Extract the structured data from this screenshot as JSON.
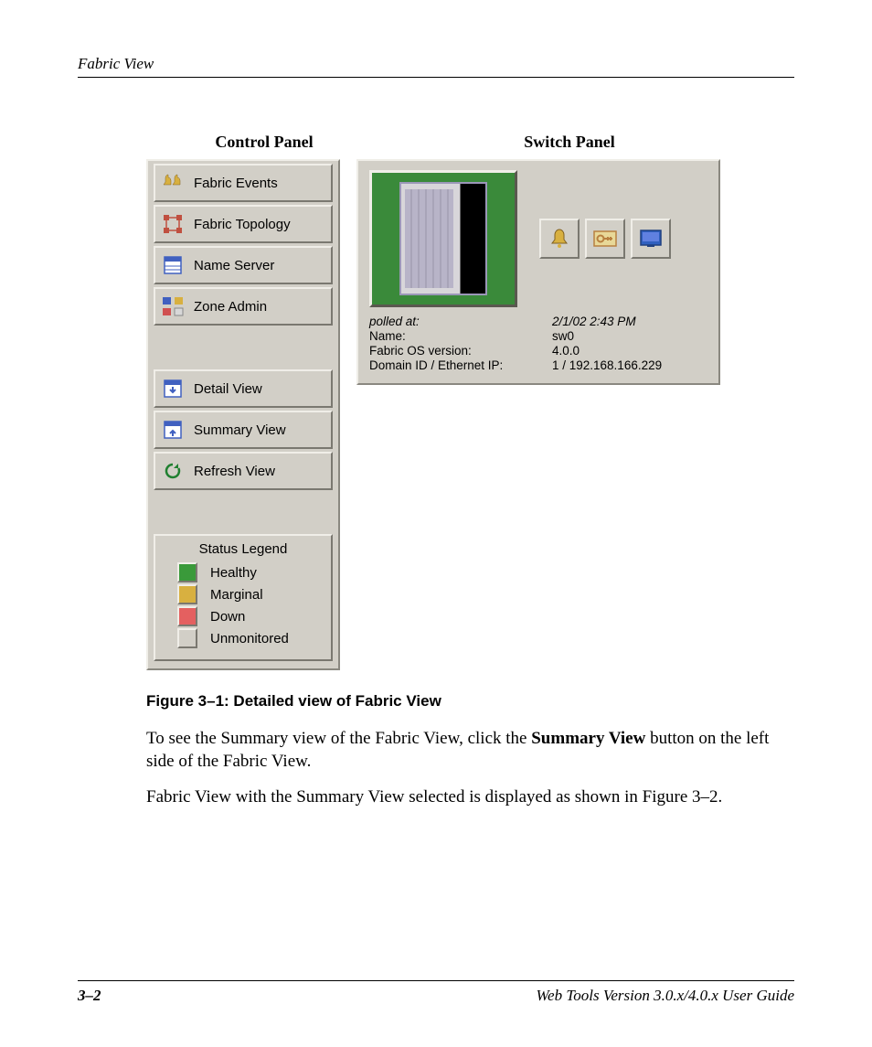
{
  "header": {
    "section": "Fabric View"
  },
  "labels": {
    "control": "Control Panel",
    "switch": "Switch Panel"
  },
  "control_panel": {
    "buttons_top": [
      {
        "label": "Fabric Events",
        "name": "fabric-events-button",
        "icon": "bells",
        "icon_color": "#d8b040"
      },
      {
        "label": "Fabric Topology",
        "name": "fabric-topology-button",
        "icon": "topology",
        "icon_color": "#c05040"
      },
      {
        "label": "Name Server",
        "name": "name-server-button",
        "icon": "table",
        "icon_color": "#4060c0"
      },
      {
        "label": "Zone Admin",
        "name": "zone-admin-button",
        "icon": "zone",
        "icon_color": "#4060c0"
      }
    ],
    "buttons_mid": [
      {
        "label": "Detail View",
        "name": "detail-view-button",
        "icon": "arrow-down",
        "icon_color": "#4060c0"
      },
      {
        "label": "Summary View",
        "name": "summary-view-button",
        "icon": "arrow-up",
        "icon_color": "#4060c0"
      },
      {
        "label": "Refresh View",
        "name": "refresh-view-button",
        "icon": "refresh",
        "icon_color": "#208030"
      }
    ],
    "legend": {
      "title": "Status Legend",
      "items": [
        {
          "label": "Healthy",
          "color": "#3a9a3a"
        },
        {
          "label": "Marginal",
          "color": "#d8b040"
        },
        {
          "label": "Down",
          "color": "#e46060"
        },
        {
          "label": "Unmonitored",
          "color": "#d2cfc7"
        }
      ]
    }
  },
  "switch_panel": {
    "icons": [
      {
        "name": "alert-icon",
        "glyph": "bell",
        "color": "#d8b040"
      },
      {
        "name": "admin-icon",
        "glyph": "key",
        "color": "#b88040"
      },
      {
        "name": "telnet-icon",
        "glyph": "screen",
        "color": "#3060c0"
      }
    ],
    "info": [
      {
        "key": "polled at:",
        "value": "2/1/02 2:43 PM",
        "polled": true
      },
      {
        "key": "Name:",
        "value": "sw0"
      },
      {
        "key": "Fabric OS version:",
        "value": "4.0.0"
      },
      {
        "key": "Domain ID / Ethernet IP:",
        "value": "1 / 192.168.166.229"
      }
    ]
  },
  "caption": "Figure 3–1:  Detailed view of Fabric View",
  "para1_a": "To see the Summary view of the Fabric View, click the ",
  "para1_b": "Summary View",
  "para1_c": " button on the left side of the Fabric View.",
  "para2": "Fabric View with the Summary View selected is displayed as shown in Figure 3–2.",
  "footer": {
    "page": "3–2",
    "title": "Web Tools Version 3.0.x/4.0.x User Guide"
  }
}
